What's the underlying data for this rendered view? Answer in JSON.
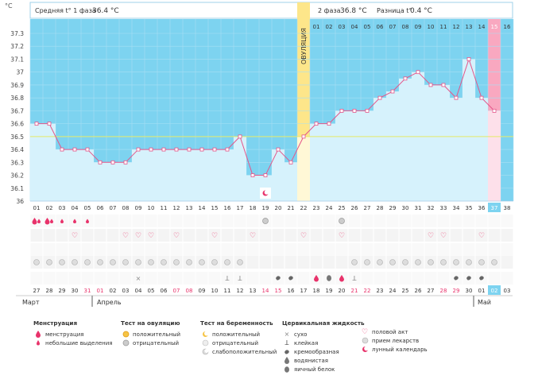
{
  "unit": "°C",
  "phase1": {
    "label": "Средняя t° 1 фаза",
    "value": "36.4 °C"
  },
  "phase2": {
    "label": "2 фаза",
    "value": "36.8 °C"
  },
  "diff": {
    "label": "Разница t°",
    "value": "0.4 °C"
  },
  "ovulation_label": "ОВУЛЯЦИЯ",
  "chart_data": {
    "type": "line",
    "ylabel": "°C",
    "ylim": [
      36.0,
      37.3
    ],
    "yticks": [
      "37.3",
      "37.2",
      "37.1",
      "37",
      "36.9",
      "36.8",
      "36.7",
      "36.6",
      "36.5",
      "36.4",
      "36.3",
      "36.2",
      "36.1",
      "36"
    ],
    "cycle_days": [
      "01",
      "02",
      "03",
      "04",
      "05",
      "06",
      "07",
      "08",
      "09",
      "10",
      "11",
      "12",
      "13",
      "14",
      "15",
      "16",
      "17",
      "18",
      "19",
      "20",
      "21",
      "22",
      "23",
      "24",
      "25",
      "26",
      "27",
      "28",
      "29",
      "30",
      "31",
      "32",
      "33",
      "34",
      "35",
      "36",
      "37",
      "38"
    ],
    "top_labels": [
      "01",
      "02",
      "03",
      "04",
      "05",
      "06",
      "07",
      "08",
      "09",
      "10",
      "11",
      "12",
      "13",
      "14",
      "15",
      "16"
    ],
    "temperatures": [
      36.6,
      36.6,
      36.4,
      36.4,
      36.4,
      36.3,
      36.3,
      36.3,
      36.4,
      36.4,
      36.4,
      36.4,
      36.4,
      36.4,
      36.4,
      36.4,
      36.5,
      36.2,
      36.2,
      36.4,
      36.3,
      36.5,
      36.6,
      36.6,
      36.7,
      36.7,
      36.7,
      36.8,
      36.85,
      36.95,
      37.0,
      36.9,
      36.9,
      36.8,
      37.1,
      36.8,
      36.7,
      null
    ],
    "coverline": 36.5,
    "ovulation_day": 22,
    "highlight_day": 37,
    "calendar_dates": [
      "27",
      "28",
      "29",
      "30",
      "31",
      "01",
      "02",
      "03",
      "04",
      "05",
      "06",
      "07",
      "08",
      "09",
      "10",
      "11",
      "12",
      "13",
      "14",
      "15",
      "16",
      "17",
      "18",
      "19",
      "20",
      "21",
      "22",
      "23",
      "24",
      "25",
      "26",
      "27",
      "28",
      "29",
      "30",
      "01",
      "02",
      "03"
    ],
    "weekend_days": [
      4,
      5,
      11,
      12,
      18,
      19,
      25,
      26,
      32,
      33
    ],
    "months": [
      "Март",
      "Апрель",
      "Май"
    ]
  },
  "legend": {
    "menstruation": {
      "title": "Менструация",
      "items": [
        "менструация",
        "небольшие выделения"
      ]
    },
    "ovulation_test": {
      "title": "Тест на овуляцию",
      "items": [
        "положительный",
        "отрицательный"
      ]
    },
    "pregnancy_test": {
      "title": "Тест на беременность",
      "items": [
        "положительный",
        "отрицательный",
        "слабоположительный"
      ]
    },
    "cervical": {
      "title": "Цервикальная жидкость",
      "items": [
        "сухо",
        "клейкая",
        "кремообразная",
        "водянистая",
        "яичный белок"
      ]
    },
    "other": {
      "items": [
        "половой акт",
        "прием лекарств",
        "лунный календарь"
      ]
    }
  }
}
